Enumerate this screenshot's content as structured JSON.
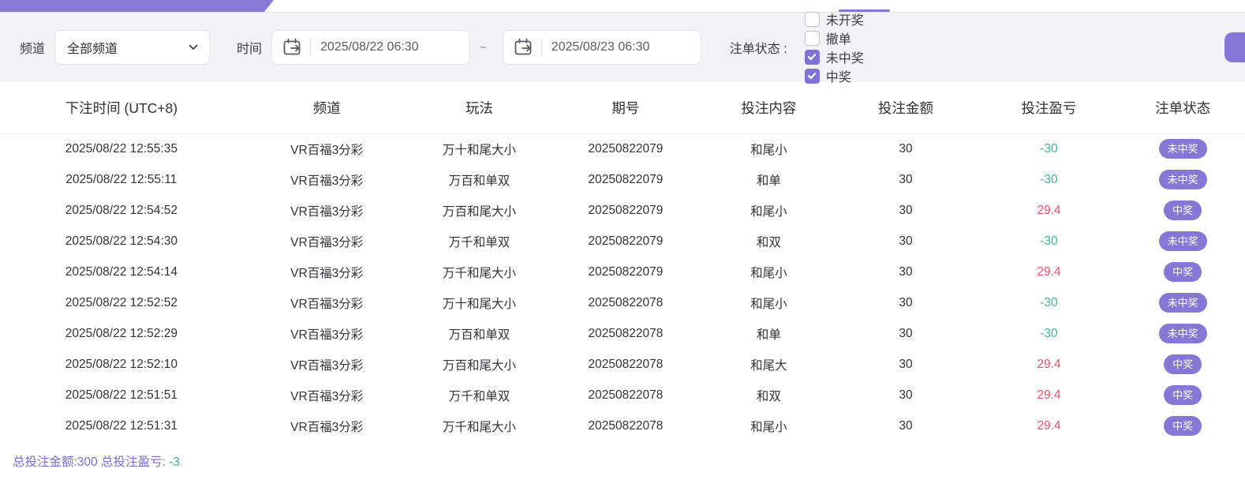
{
  "theme": {
    "accent": "#8677d7",
    "ribbon": "#8a7ad8",
    "filter_bg": "#f2f2f7",
    "win_color": "#f0506e",
    "loss_color": "#43b396"
  },
  "filters": {
    "channel_label": "频道",
    "channel_value": "全部频道",
    "time_label": "时间",
    "time_from": "2025/08/22 06:30",
    "time_separator": "~",
    "time_to": "2025/08/23 06:30",
    "status_label": "注单状态 :",
    "status_options": [
      {
        "label": "未开奖",
        "checked": false
      },
      {
        "label": "撤单",
        "checked": false
      },
      {
        "label": "未中奖",
        "checked": true
      },
      {
        "label": "中奖",
        "checked": true
      }
    ]
  },
  "table": {
    "columns": [
      "下注时间 (UTC+8)",
      "频道",
      "玩法",
      "期号",
      "投注内容",
      "投注金额",
      "投注盈亏",
      "注单状态"
    ],
    "rows": [
      {
        "time": "2025/08/22 12:55:35",
        "channel": "VR百福3分彩",
        "play": "万十和尾大小",
        "issue": "20250822079",
        "content": "和尾小",
        "amount": "30",
        "profit": "-30",
        "profit_type": "loss",
        "status": "未中奖"
      },
      {
        "time": "2025/08/22 12:55:11",
        "channel": "VR百福3分彩",
        "play": "万百和单双",
        "issue": "20250822079",
        "content": "和单",
        "amount": "30",
        "profit": "-30",
        "profit_type": "loss",
        "status": "未中奖"
      },
      {
        "time": "2025/08/22 12:54:52",
        "channel": "VR百福3分彩",
        "play": "万百和尾大小",
        "issue": "20250822079",
        "content": "和尾小",
        "amount": "30",
        "profit": "29.4",
        "profit_type": "win",
        "status": "中奖"
      },
      {
        "time": "2025/08/22 12:54:30",
        "channel": "VR百福3分彩",
        "play": "万千和单双",
        "issue": "20250822079",
        "content": "和双",
        "amount": "30",
        "profit": "-30",
        "profit_type": "loss",
        "status": "未中奖"
      },
      {
        "time": "2025/08/22 12:54:14",
        "channel": "VR百福3分彩",
        "play": "万千和尾大小",
        "issue": "20250822079",
        "content": "和尾小",
        "amount": "30",
        "profit": "29.4",
        "profit_type": "win",
        "status": "中奖"
      },
      {
        "time": "2025/08/22 12:52:52",
        "channel": "VR百福3分彩",
        "play": "万十和尾大小",
        "issue": "20250822078",
        "content": "和尾小",
        "amount": "30",
        "profit": "-30",
        "profit_type": "loss",
        "status": "未中奖"
      },
      {
        "time": "2025/08/22 12:52:29",
        "channel": "VR百福3分彩",
        "play": "万百和单双",
        "issue": "20250822078",
        "content": "和单",
        "amount": "30",
        "profit": "-30",
        "profit_type": "loss",
        "status": "未中奖"
      },
      {
        "time": "2025/08/22 12:52:10",
        "channel": "VR百福3分彩",
        "play": "万百和尾大小",
        "issue": "20250822078",
        "content": "和尾大",
        "amount": "30",
        "profit": "29.4",
        "profit_type": "win",
        "status": "中奖"
      },
      {
        "time": "2025/08/22 12:51:51",
        "channel": "VR百福3分彩",
        "play": "万千和单双",
        "issue": "20250822078",
        "content": "和双",
        "amount": "30",
        "profit": "29.4",
        "profit_type": "win",
        "status": "中奖"
      },
      {
        "time": "2025/08/22 12:51:31",
        "channel": "VR百福3分彩",
        "play": "万千和尾大小",
        "issue": "20250822078",
        "content": "和尾小",
        "amount": "30",
        "profit": "29.4",
        "profit_type": "win",
        "status": "中奖"
      }
    ]
  },
  "footer": {
    "summary_text": "总投注金额:300 总投注盈亏:",
    "summary_value": "-3"
  }
}
